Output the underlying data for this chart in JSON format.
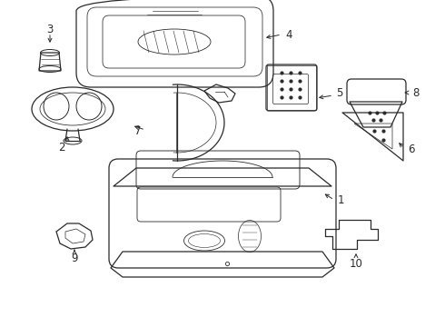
{
  "background_color": "#ffffff",
  "line_color": "#2a2a2a",
  "fig_width": 4.9,
  "fig_height": 3.6,
  "dpi": 100,
  "label_fontsize": 8.5
}
